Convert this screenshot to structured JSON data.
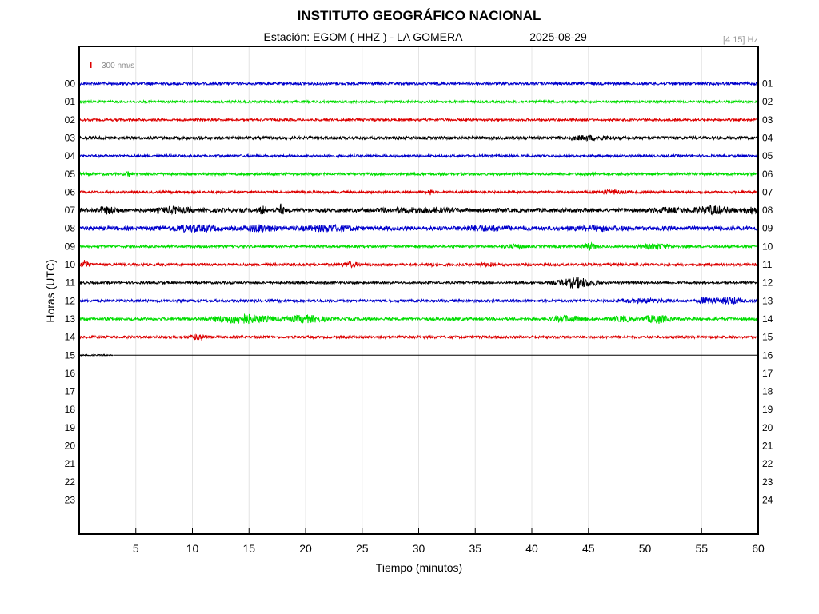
{
  "header": {
    "title": "INSTITUTO GEOGRÁFICO NACIONAL",
    "station": "Estación:  EGOM ( HHZ ) - LA GOMERA",
    "date": "2025-08-29",
    "filter": "[4 15] Hz"
  },
  "scale_bar": {
    "label": "300 nm/s",
    "color": "#dd0000"
  },
  "chart_data": {
    "type": "line",
    "title": "INSTITUTO GEOGRÁFICO NACIONAL",
    "xlabel": "Tiempo (minutos)",
    "ylabel": "Horas (UTC)",
    "xlim": [
      0,
      60
    ],
    "x_ticks": [
      5,
      10,
      15,
      20,
      25,
      30,
      35,
      40,
      45,
      50,
      55,
      60
    ],
    "grid_x": true,
    "left_labels": [
      "00",
      "01",
      "02",
      "03",
      "04",
      "05",
      "06",
      "07",
      "08",
      "09",
      "10",
      "11",
      "12",
      "13",
      "14",
      "15",
      "16",
      "17",
      "18",
      "19",
      "20",
      "21",
      "22",
      "23"
    ],
    "right_labels": [
      "01",
      "02",
      "03",
      "04",
      "05",
      "06",
      "07",
      "08",
      "09",
      "10",
      "11",
      "12",
      "13",
      "14",
      "15",
      "16",
      "17",
      "18",
      "19",
      "20",
      "21",
      "22",
      "23",
      "24"
    ],
    "series": [
      {
        "hour": 0,
        "color": "#0000cc",
        "start": 0,
        "end": 60,
        "base_amp": 1.6,
        "bursts": []
      },
      {
        "hour": 1,
        "color": "#00dd00",
        "start": 0,
        "end": 60,
        "base_amp": 1.4,
        "bursts": []
      },
      {
        "hour": 2,
        "color": "#dd0000",
        "start": 0,
        "end": 60,
        "base_amp": 1.4,
        "bursts": []
      },
      {
        "hour": 3,
        "color": "#000000",
        "start": 0,
        "end": 60,
        "base_amp": 1.8,
        "bursts": [
          [
            45,
            3,
            2
          ]
        ]
      },
      {
        "hour": 4,
        "color": "#0000cc",
        "start": 0,
        "end": 60,
        "base_amp": 1.5,
        "bursts": []
      },
      {
        "hour": 5,
        "color": "#00dd00",
        "start": 0,
        "end": 60,
        "base_amp": 1.6,
        "bursts": [
          [
            4.3,
            0.2,
            4
          ]
        ]
      },
      {
        "hour": 6,
        "color": "#dd0000",
        "start": 0,
        "end": 60,
        "base_amp": 1.5,
        "bursts": [
          [
            31,
            0.3,
            3
          ],
          [
            47,
            2,
            2
          ]
        ]
      },
      {
        "hour": 7,
        "color": "#000000",
        "start": 0,
        "end": 60,
        "base_amp": 2.5,
        "bursts": [
          [
            2.5,
            1.5,
            3
          ],
          [
            8.5,
            2,
            3
          ],
          [
            16.2,
            0.4,
            5
          ],
          [
            17.8,
            0.4,
            6
          ],
          [
            30,
            4,
            2
          ],
          [
            52,
            2,
            2
          ],
          [
            56,
            2.5,
            4
          ],
          [
            59.5,
            1,
            3
          ]
        ]
      },
      {
        "hour": 8,
        "color": "#0000cc",
        "start": 0,
        "end": 60,
        "base_amp": 2.5,
        "bursts": [
          [
            10,
            3,
            3
          ],
          [
            16,
            2,
            3
          ],
          [
            22,
            3,
            3
          ],
          [
            36,
            3,
            2
          ],
          [
            46,
            3,
            2
          ]
        ]
      },
      {
        "hour": 9,
        "color": "#00dd00",
        "start": 0,
        "end": 60,
        "base_amp": 1.5,
        "bursts": [
          [
            38.5,
            1.5,
            2
          ],
          [
            45,
            1,
            4
          ],
          [
            51,
            2,
            3
          ]
        ]
      },
      {
        "hour": 10,
        "color": "#dd0000",
        "start": 0,
        "end": 60,
        "base_amp": 1.6,
        "bursts": [
          [
            0.5,
            0.5,
            5
          ],
          [
            24,
            1,
            3
          ],
          [
            31,
            0.5,
            3
          ],
          [
            36,
            1,
            2
          ]
        ]
      },
      {
        "hour": 11,
        "color": "#000000",
        "start": 0,
        "end": 60,
        "base_amp": 1.4,
        "bursts": [
          [
            44,
            2.5,
            6
          ]
        ]
      },
      {
        "hour": 12,
        "color": "#0000cc",
        "start": 0,
        "end": 60,
        "base_amp": 1.6,
        "bursts": [
          [
            50,
            3,
            2
          ],
          [
            55.5,
            1,
            5
          ],
          [
            57.5,
            1.5,
            4
          ]
        ]
      },
      {
        "hour": 13,
        "color": "#00dd00",
        "start": 0,
        "end": 60,
        "base_amp": 1.8,
        "bursts": [
          [
            14.5,
            4,
            5
          ],
          [
            20,
            2.5,
            4
          ],
          [
            43,
            2,
            3
          ],
          [
            48,
            1.5,
            3
          ],
          [
            51,
            1.5,
            5
          ]
        ]
      },
      {
        "hour": 14,
        "color": "#dd0000",
        "start": 0,
        "end": 60,
        "base_amp": 1.5,
        "bursts": [
          [
            10.5,
            1,
            3
          ]
        ]
      },
      {
        "hour": 15,
        "color": "#000000",
        "start": 0,
        "end": 3,
        "base_amp": 0.8,
        "bursts": []
      }
    ]
  }
}
